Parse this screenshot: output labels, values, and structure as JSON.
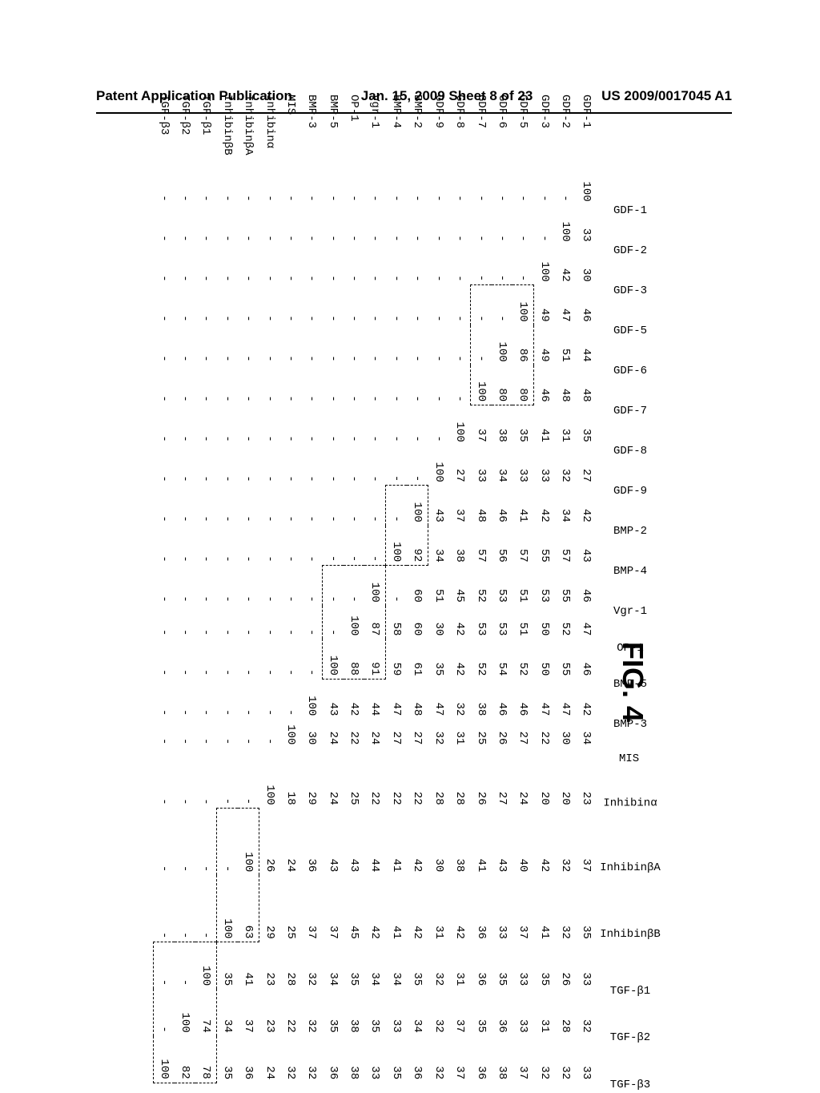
{
  "header": {
    "left": "Patent Application Publication",
    "center": "Jan. 15, 2009  Sheet 8 of 23",
    "right": "US 2009/0017045 A1"
  },
  "figure_label": "FIG. 4",
  "row_labels": [
    "GDF-1",
    "GDF-2",
    "GDF-3",
    "GDF-5",
    "GDF-6",
    "GDF-7",
    "GDF-8",
    "GDF-9",
    "BMP-2",
    "BMP-4",
    "Vgr-1",
    "OP-1",
    "BMP-5",
    "BMP-3",
    "MIS",
    "Inhibinα",
    "InhibinβA",
    "InhibinβB",
    "TGF-β1",
    "TGF-β2",
    "TGF-β3"
  ],
  "col_labels": [
    "GDF-1",
    "GDF-2",
    "GDF-3",
    "GDF-5",
    "GDF-6",
    "GDF-7",
    "GDF-8",
    "GDF-9",
    "BMP-2",
    "BMP-4",
    "Vgr-1",
    "OP-1",
    "BMP-5",
    "BMP-3",
    "MIS",
    "Inhibinα",
    "InhibinβA",
    "InhibinβB",
    "TGF-β1",
    "TGF-β2",
    "TGF-β3"
  ],
  "matrix": [
    [
      100,
      33,
      30,
      46,
      44,
      48,
      35,
      27,
      42,
      43,
      46,
      47,
      46,
      42,
      34,
      23,
      37,
      35,
      33,
      32,
      33
    ],
    [
      null,
      100,
      42,
      47,
      51,
      48,
      31,
      32,
      34,
      57,
      55,
      52,
      55,
      47,
      30,
      20,
      32,
      32,
      26,
      28,
      32
    ],
    [
      null,
      null,
      100,
      49,
      49,
      46,
      41,
      33,
      42,
      55,
      53,
      50,
      50,
      47,
      22,
      20,
      42,
      41,
      35,
      31,
      32
    ],
    [
      null,
      null,
      null,
      100,
      86,
      80,
      35,
      33,
      41,
      57,
      51,
      51,
      52,
      46,
      27,
      24,
      40,
      37,
      33,
      33,
      37
    ],
    [
      null,
      null,
      null,
      null,
      100,
      80,
      38,
      34,
      46,
      56,
      53,
      53,
      54,
      46,
      26,
      27,
      43,
      33,
      35,
      36,
      38
    ],
    [
      null,
      null,
      null,
      null,
      null,
      100,
      37,
      33,
      48,
      57,
      52,
      53,
      52,
      38,
      25,
      26,
      41,
      36,
      36,
      35,
      36
    ],
    [
      null,
      null,
      null,
      null,
      null,
      null,
      100,
      27,
      37,
      38,
      45,
      42,
      42,
      32,
      31,
      28,
      38,
      42,
      31,
      37,
      37
    ],
    [
      null,
      null,
      null,
      null,
      null,
      null,
      null,
      100,
      43,
      34,
      51,
      30,
      35,
      47,
      32,
      28,
      30,
      31,
      32,
      32,
      32
    ],
    [
      null,
      null,
      null,
      null,
      null,
      null,
      null,
      null,
      100,
      92,
      60,
      60,
      61,
      48,
      27,
      22,
      42,
      42,
      35,
      34,
      36
    ],
    [
      null,
      null,
      null,
      null,
      null,
      null,
      null,
      null,
      null,
      100,
      null,
      58,
      59,
      47,
      27,
      22,
      41,
      41,
      34,
      33,
      35
    ],
    [
      null,
      null,
      null,
      null,
      null,
      null,
      null,
      null,
      null,
      null,
      100,
      87,
      91,
      44,
      24,
      22,
      44,
      42,
      34,
      35,
      33
    ],
    [
      null,
      null,
      null,
      null,
      null,
      null,
      null,
      null,
      null,
      null,
      null,
      100,
      88,
      42,
      22,
      25,
      43,
      45,
      35,
      38,
      38
    ],
    [
      null,
      null,
      null,
      null,
      null,
      null,
      null,
      null,
      null,
      null,
      null,
      null,
      100,
      43,
      24,
      24,
      43,
      37,
      34,
      35,
      36
    ],
    [
      null,
      null,
      null,
      null,
      null,
      null,
      null,
      null,
      null,
      null,
      null,
      null,
      null,
      100,
      30,
      29,
      36,
      37,
      32,
      32,
      32
    ],
    [
      null,
      null,
      null,
      null,
      null,
      null,
      null,
      null,
      null,
      null,
      null,
      null,
      null,
      null,
      100,
      18,
      24,
      25,
      28,
      22,
      32
    ],
    [
      null,
      null,
      null,
      null,
      null,
      null,
      null,
      null,
      null,
      null,
      null,
      null,
      null,
      null,
      null,
      100,
      26,
      29,
      23,
      23,
      24
    ],
    [
      null,
      null,
      null,
      null,
      null,
      null,
      null,
      null,
      null,
      null,
      null,
      null,
      null,
      null,
      null,
      null,
      100,
      63,
      41,
      37,
      36
    ],
    [
      null,
      null,
      null,
      null,
      null,
      null,
      null,
      null,
      null,
      null,
      null,
      null,
      null,
      null,
      null,
      null,
      null,
      100,
      35,
      34,
      35
    ],
    [
      null,
      null,
      null,
      null,
      null,
      null,
      null,
      null,
      null,
      null,
      null,
      null,
      null,
      null,
      null,
      null,
      null,
      null,
      100,
      74,
      78
    ],
    [
      null,
      null,
      null,
      null,
      null,
      null,
      null,
      null,
      null,
      null,
      null,
      null,
      null,
      null,
      null,
      null,
      null,
      null,
      null,
      100,
      82
    ],
    [
      null,
      null,
      null,
      null,
      null,
      null,
      null,
      null,
      null,
      null,
      null,
      null,
      null,
      null,
      null,
      null,
      null,
      null,
      null,
      null,
      100
    ]
  ],
  "boxes": [
    {
      "rows": [
        3,
        5
      ],
      "cols": [
        3,
        5
      ]
    },
    {
      "rows": [
        8,
        9
      ],
      "cols": [
        8,
        9
      ]
    },
    {
      "rows": [
        10,
        12
      ],
      "cols": [
        10,
        12
      ]
    },
    {
      "rows": [
        16,
        17
      ],
      "cols": [
        16,
        17
      ]
    },
    {
      "rows": [
        18,
        20
      ],
      "cols": [
        18,
        20
      ]
    }
  ],
  "style": {
    "font_family": "Courier New",
    "cell_fontsize": 14,
    "header_fontsize": 17,
    "fig_label_fontsize": 36,
    "background": "#ffffff",
    "text_color": "#000000",
    "box_border": "1.5px dashed #000"
  }
}
